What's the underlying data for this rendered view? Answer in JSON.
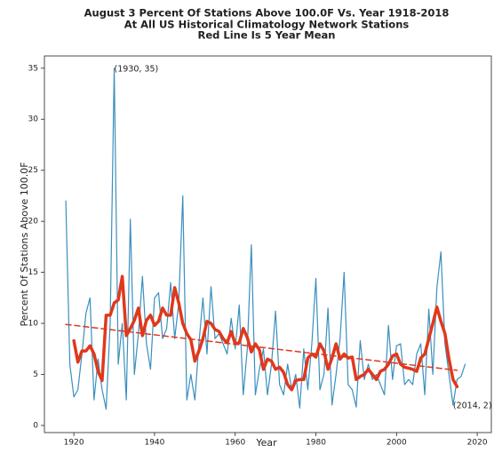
{
  "chart_data": {
    "type": "line",
    "title": [
      "August 3 Percent Of Stations Above 100.0F Vs. Year 1918-2018",
      "At All US Historical Climatology Network Stations",
      "Red Line Is 5 Year Mean"
    ],
    "xlabel": "Year",
    "ylabel": "Percent Of Stations Above 100.0F",
    "xlim": [
      1912.7,
      2023.5
    ],
    "ylim": [
      -0.7,
      36.2
    ],
    "xticks": [
      1920,
      1940,
      1960,
      1980,
      2000,
      2020
    ],
    "yticks": [
      0,
      5,
      10,
      15,
      20,
      25,
      30,
      35
    ],
    "series": [
      {
        "color": "#3b8fbd",
        "width": 1.2,
        "x": [
          1918,
          1919,
          1920,
          1921,
          1922,
          1923,
          1924,
          1925,
          1926,
          1927,
          1928,
          1929,
          1930,
          1931,
          1932,
          1933,
          1934,
          1935,
          1936,
          1937,
          1938,
          1939,
          1940,
          1941,
          1942,
          1943,
          1944,
          1945,
          1946,
          1947,
          1948,
          1949,
          1950,
          1951,
          1952,
          1953,
          1954,
          1955,
          1956,
          1957,
          1958,
          1959,
          1960,
          1961,
          1962,
          1963,
          1964,
          1965,
          1966,
          1967,
          1968,
          1969,
          1970,
          1971,
          1972,
          1973,
          1974,
          1975,
          1976,
          1977,
          1978,
          1979,
          1980,
          1981,
          1982,
          1983,
          1984,
          1985,
          1986,
          1987,
          1988,
          1989,
          1990,
          1991,
          1992,
          1993,
          1994,
          1995,
          1996,
          1997,
          1998,
          1999,
          2000,
          2001,
          2002,
          2003,
          2004,
          2005,
          2006,
          2007,
          2008,
          2009,
          2010,
          2011,
          2012,
          2013,
          2014,
          2015,
          2016,
          2017
        ],
        "values": [
          22,
          6,
          2.8,
          3.5,
          7,
          11,
          12.5,
          2.5,
          6.5,
          3.5,
          1.6,
          10,
          35,
          6,
          10,
          2.5,
          20.2,
          5,
          9,
          14.6,
          8,
          5.5,
          12.5,
          13,
          8.5,
          9.5,
          14,
          8.5,
          12,
          22.5,
          2.5,
          5,
          2.5,
          8,
          12.5,
          7,
          13.6,
          8.5,
          9,
          8,
          7,
          10.5,
          7.5,
          11.8,
          3,
          7.5,
          17.7,
          3,
          5.5,
          7.5,
          3,
          6,
          11.2,
          4,
          3,
          6,
          3.5,
          5,
          1.7,
          7.5,
          3.5,
          8,
          14.4,
          3.5,
          5,
          11.5,
          2,
          5,
          8.5,
          15,
          4,
          3.5,
          1.8,
          8.3,
          4.5,
          6,
          4.5,
          5,
          4,
          3,
          9.8,
          4.5,
          7.8,
          8,
          4,
          4.5,
          4,
          7,
          8,
          3,
          11.4,
          5,
          13.5,
          17,
          8,
          5,
          2,
          4.5,
          4.8,
          6
        ]
      },
      {
        "color": "#e0381c",
        "width": 3.5,
        "x": [
          1920,
          1921,
          1922,
          1923,
          1924,
          1925,
          1926,
          1927,
          1928,
          1929,
          1930,
          1931,
          1932,
          1933,
          1934,
          1935,
          1936,
          1937,
          1938,
          1939,
          1940,
          1941,
          1942,
          1943,
          1944,
          1945,
          1946,
          1947,
          1948,
          1949,
          1950,
          1951,
          1952,
          1953,
          1954,
          1955,
          1956,
          1957,
          1958,
          1959,
          1960,
          1961,
          1962,
          1963,
          1964,
          1965,
          1966,
          1967,
          1968,
          1969,
          1970,
          1971,
          1972,
          1973,
          1974,
          1975,
          1976,
          1977,
          1978,
          1979,
          1980,
          1981,
          1982,
          1983,
          1984,
          1985,
          1986,
          1987,
          1988,
          1989,
          1990,
          1991,
          1992,
          1993,
          1994,
          1995,
          1996,
          1997,
          1998,
          1999,
          2000,
          2001,
          2002,
          2003,
          2004,
          2005,
          2006,
          2007,
          2008,
          2009,
          2010,
          2011,
          2012,
          2013,
          2014,
          2015
        ],
        "values": [
          8.3,
          6.2,
          7.3,
          7.3,
          7.8,
          7,
          5.3,
          4.4,
          10.8,
          10.8,
          12,
          12.3,
          14.6,
          8.8,
          9.5,
          10.3,
          11.5,
          8.8,
          10.3,
          10.8,
          9.8,
          10.2,
          11.5,
          10.8,
          10.8,
          13.5,
          12,
          10,
          9,
          8.4,
          6.3,
          7.3,
          8.5,
          10.2,
          10,
          9.4,
          9.2,
          8.5,
          8.1,
          9.2,
          8,
          8.1,
          9.5,
          8.6,
          7.2,
          8,
          7.4,
          5.5,
          6.5,
          6.3,
          5.5,
          5.7,
          5.2,
          4,
          3.5,
          4.4,
          4.5,
          4.5,
          6.6,
          7,
          6.7,
          8,
          7.3,
          5.5,
          6.6,
          8,
          6.5,
          7,
          6.6,
          6.7,
          4.5,
          4.8,
          5,
          5.5,
          5,
          4.5,
          5.3,
          5.5,
          6,
          6.8,
          7,
          6,
          5.7,
          5.6,
          5.5,
          5.3,
          6.6,
          7,
          8.5,
          10,
          11.6,
          10.2,
          9,
          6.5,
          4.5,
          3.8
        ]
      },
      {
        "color": "#e0381c",
        "width": 1.5,
        "dashed": true,
        "x": [
          1918,
          2015
        ],
        "values": [
          9.9,
          5.4
        ]
      }
    ],
    "annotations": [
      {
        "text": "(1930, 35)",
        "x": 1930,
        "y": 35
      },
      {
        "text": "(2014, 2)",
        "x": 2014,
        "y": 2
      }
    ]
  }
}
